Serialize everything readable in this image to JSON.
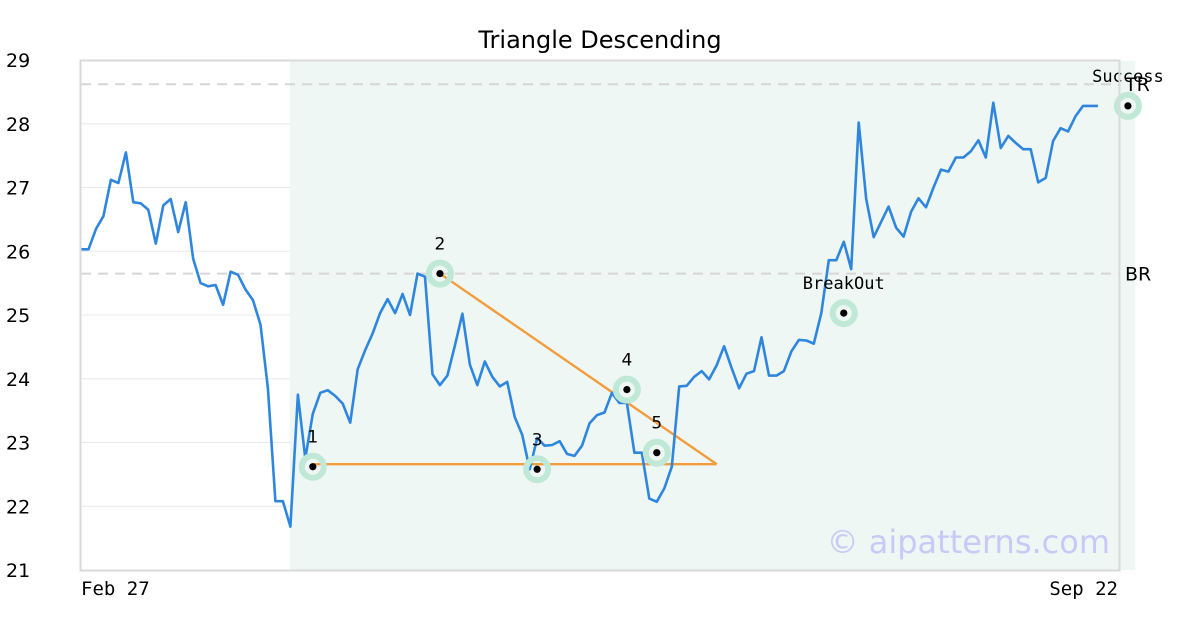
{
  "chart_data": {
    "type": "line",
    "title": "Triangle Descending",
    "xlabel": "",
    "ylabel": "",
    "ylim": [
      21,
      29
    ],
    "yticks": [
      "21",
      "22",
      "23",
      "24",
      "25",
      "26",
      "27",
      "28",
      "29"
    ],
    "xticks": [
      {
        "label": "Feb 27",
        "index": 0
      },
      {
        "label": "Sep 22",
        "index": 144
      }
    ],
    "grid": true,
    "series": [
      {
        "color": "#2e86de",
        "values": [
          26.03,
          26.03,
          26.35,
          26.55,
          27.12,
          27.07,
          27.55,
          26.77,
          26.75,
          26.65,
          26.12,
          26.72,
          26.82,
          26.3,
          26.77,
          25.88,
          25.5,
          25.45,
          25.47,
          25.16,
          25.68,
          25.63,
          25.4,
          25.23,
          24.85,
          23.85,
          22.08,
          22.08,
          21.68,
          23.75,
          22.75,
          23.45,
          23.78,
          23.82,
          23.73,
          23.61,
          23.31,
          24.15,
          24.45,
          24.71,
          25.03,
          25.25,
          25.03,
          25.33,
          25.0,
          25.65,
          25.6,
          24.07,
          23.9,
          24.05,
          24.52,
          25.02,
          24.22,
          23.9,
          24.27,
          24.03,
          23.88,
          23.95,
          23.4,
          23.12,
          22.58,
          23.07,
          22.95,
          22.96,
          23.02,
          22.82,
          22.79,
          22.95,
          23.3,
          23.43,
          23.47,
          23.78,
          23.62,
          23.62,
          22.84,
          22.84,
          22.12,
          22.07,
          22.28,
          22.62,
          23.88,
          23.89,
          24.03,
          24.12,
          23.99,
          24.21,
          24.51,
          24.17,
          23.85,
          24.08,
          24.12,
          24.65,
          24.05,
          24.05,
          24.12,
          24.43,
          24.61,
          24.6,
          24.55,
          25.03,
          25.86,
          25.86,
          26.15,
          25.72,
          28.02,
          26.82,
          26.22,
          26.46,
          26.7,
          26.37,
          26.23,
          26.62,
          26.83,
          26.69,
          27.0,
          27.28,
          27.25,
          27.47,
          27.47,
          27.57,
          27.74,
          27.47,
          28.33,
          27.62,
          27.81,
          27.7,
          27.6,
          27.6,
          27.08,
          27.15,
          27.73,
          27.93,
          27.88,
          28.12,
          28.28,
          28.28,
          28.28
        ]
      }
    ],
    "levels": [
      {
        "label": "TR",
        "value": 28.62
      },
      {
        "label": "BR",
        "value": 25.65
      }
    ],
    "shaded_region": {
      "from_index": 29,
      "to_index": 141,
      "color": "#eef7f3"
    },
    "pattern_points": [
      {
        "label": "1",
        "index": 31,
        "value": 22.62
      },
      {
        "label": "2",
        "index": 48,
        "value": 25.65
      },
      {
        "label": "3",
        "index": 61,
        "value": 22.58
      },
      {
        "label": "4",
        "index": 73,
        "value": 23.83
      },
      {
        "label": "5",
        "index": 77,
        "value": 22.84
      }
    ],
    "pattern_lines": [
      {
        "from": [
          31,
          22.66
        ],
        "to": [
          85,
          22.66
        ],
        "color": "#f39c3c"
      },
      {
        "from": [
          48,
          25.65
        ],
        "to": [
          85,
          22.66
        ],
        "color": "#f39c3c"
      }
    ],
    "annotations": [
      {
        "label": "BreakOut",
        "index": 102,
        "value": 25.03
      },
      {
        "label": "Success",
        "index": 140,
        "value": 28.28
      }
    ],
    "watermark": "© aipatterns.com"
  }
}
